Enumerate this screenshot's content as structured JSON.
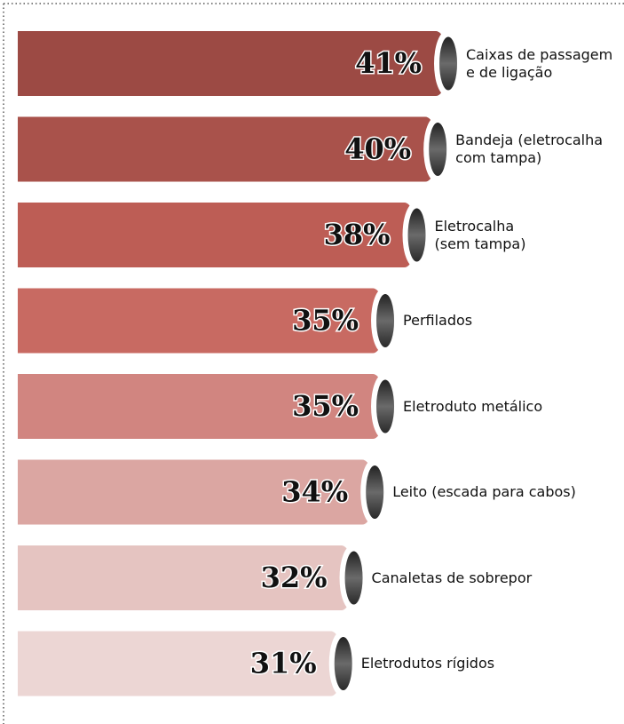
{
  "chart_data": {
    "type": "bar",
    "categories": [
      "Caixas de passagem\ne de ligação",
      "Bandeja (eletrocalha\ncom tampa)",
      "Eletrocalha\n(sem tampa)",
      "Perfilados",
      "Eletroduto metálico",
      "Leito (escada para cabos)",
      "Canaletas de sobrepor",
      "Eletrodutos rígidos"
    ],
    "values": [
      41,
      40,
      38,
      35,
      35,
      34,
      32,
      31
    ],
    "value_labels": [
      "41%",
      "40%",
      "38%",
      "35%",
      "35%",
      "34%",
      "32%",
      "31%"
    ],
    "colors": [
      "#9c4a44",
      "#a9524b",
      "#bd5d55",
      "#c86a62",
      "#d18580",
      "#dba6a2",
      "#e5c4c1",
      "#ecd6d4"
    ]
  }
}
